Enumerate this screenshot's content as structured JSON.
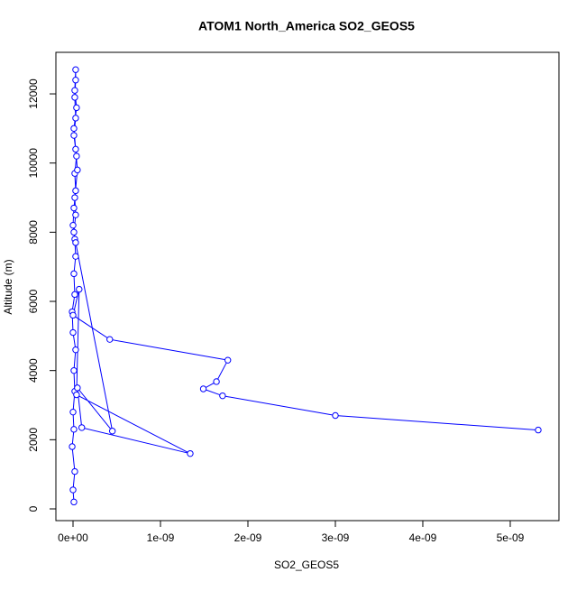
{
  "chart_data": {
    "type": "line",
    "title": "ATOM1 North_America SO2_GEOS5",
    "x_label": "SO2_GEOS5",
    "y_label": "Altitude (m)",
    "series": [
      {
        "color": "#0000ff",
        "x": [
          1e-11,
          0,
          2e-11,
          -1e-11,
          1e-11,
          0,
          2e-11,
          1e-11,
          3e-11,
          0,
          -1e-11,
          2e-11,
          1e-11,
          3e-11,
          2e-11,
          0,
          1e-11,
          3e-11,
          2e-11,
          4e-11,
          1e-11,
          3e-11,
          2e-11,
          3e-11,
          3e-11,
          2e-11,
          4e-11,
          1e-11,
          3e-11,
          5e-11,
          2e-11,
          3e-11,
          1e-11,
          3e-11,
          4.5e-10,
          5e-11,
          1e-10,
          1.34e-09,
          4e-11,
          7e-11,
          0,
          4.2e-10,
          1.77e-09,
          1.64e-09,
          1.49e-09,
          1.71e-09,
          3e-09,
          5.32e-09
        ],
        "values": [
          200,
          550,
          1080,
          1800,
          2300,
          2800,
          3400,
          4000,
          4600,
          5100,
          5700,
          6200,
          6800,
          7300,
          7800,
          8200,
          8700,
          9200,
          9700,
          10200,
          10800,
          11300,
          11900,
          12400,
          12700,
          12100,
          11600,
          11000,
          10400,
          9800,
          9000,
          8500,
          8000,
          7700,
          2250,
          3500,
          2350,
          1600,
          3300,
          6350,
          5600,
          4900,
          4300,
          3680,
          3470,
          3270,
          2700,
          2280
        ]
      }
    ],
    "xlim": [
      -1.96e-10,
      5.557e-09
    ],
    "ylim": [
      -339,
      13201
    ],
    "xticks": [
      {
        "value": 0,
        "label": "0e+00"
      },
      {
        "value": 1e-09,
        "label": "1e-09"
      },
      {
        "value": 2e-09,
        "label": "2e-09"
      },
      {
        "value": 3e-09,
        "label": "3e-09"
      },
      {
        "value": 4e-09,
        "label": "4e-09"
      },
      {
        "value": 5e-09,
        "label": "5e-09"
      }
    ],
    "yticks": [
      0,
      2000,
      4000,
      6000,
      8000,
      10000,
      12000
    ]
  }
}
